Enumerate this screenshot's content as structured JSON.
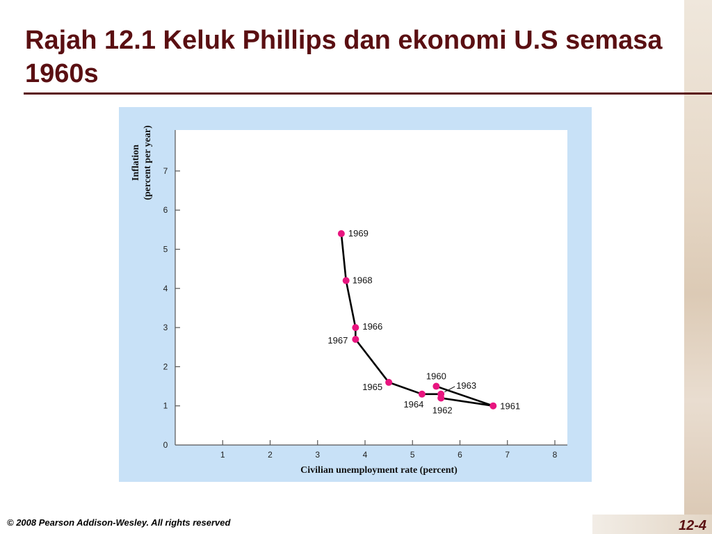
{
  "slide": {
    "title": "Rajah 12.1 Keluk Phillips dan ekonomi U.S semasa 1960s",
    "copyright": "© 2008 Pearson Addison-Wesley. All rights reserved",
    "slide_number": "12-4"
  },
  "colors": {
    "title": "#5a0f12",
    "panel": "#c8e1f7",
    "point": "#e8157f",
    "line": "#000000"
  },
  "chart_data": {
    "type": "line",
    "title": "",
    "xlabel": "Civilian unemployment rate (percent)",
    "ylabel": [
      "Inflation",
      "(percent per year)"
    ],
    "xlim": [
      0,
      8
    ],
    "ylim": [
      0,
      8
    ],
    "xticks": [
      1,
      2,
      3,
      4,
      5,
      6,
      7,
      8
    ],
    "yticks": [
      0,
      1,
      2,
      3,
      4,
      5,
      6,
      7
    ],
    "grid": false,
    "series": [
      {
        "name": "",
        "points": [
          {
            "year": "1960",
            "x": 5.5,
            "y": 1.5
          },
          {
            "year": "1961",
            "x": 6.7,
            "y": 1.0
          },
          {
            "year": "1962",
            "x": 5.6,
            "y": 1.2
          },
          {
            "year": "1963",
            "x": 5.6,
            "y": 1.3
          },
          {
            "year": "1964",
            "x": 5.2,
            "y": 1.3
          },
          {
            "year": "1965",
            "x": 4.5,
            "y": 1.6
          },
          {
            "year": "1966",
            "x": 3.8,
            "y": 3.0
          },
          {
            "year": "1967",
            "x": 3.8,
            "y": 2.7
          },
          {
            "year": "1968",
            "x": 3.6,
            "y": 4.2
          },
          {
            "year": "1969",
            "x": 3.5,
            "y": 5.4
          }
        ]
      }
    ]
  }
}
